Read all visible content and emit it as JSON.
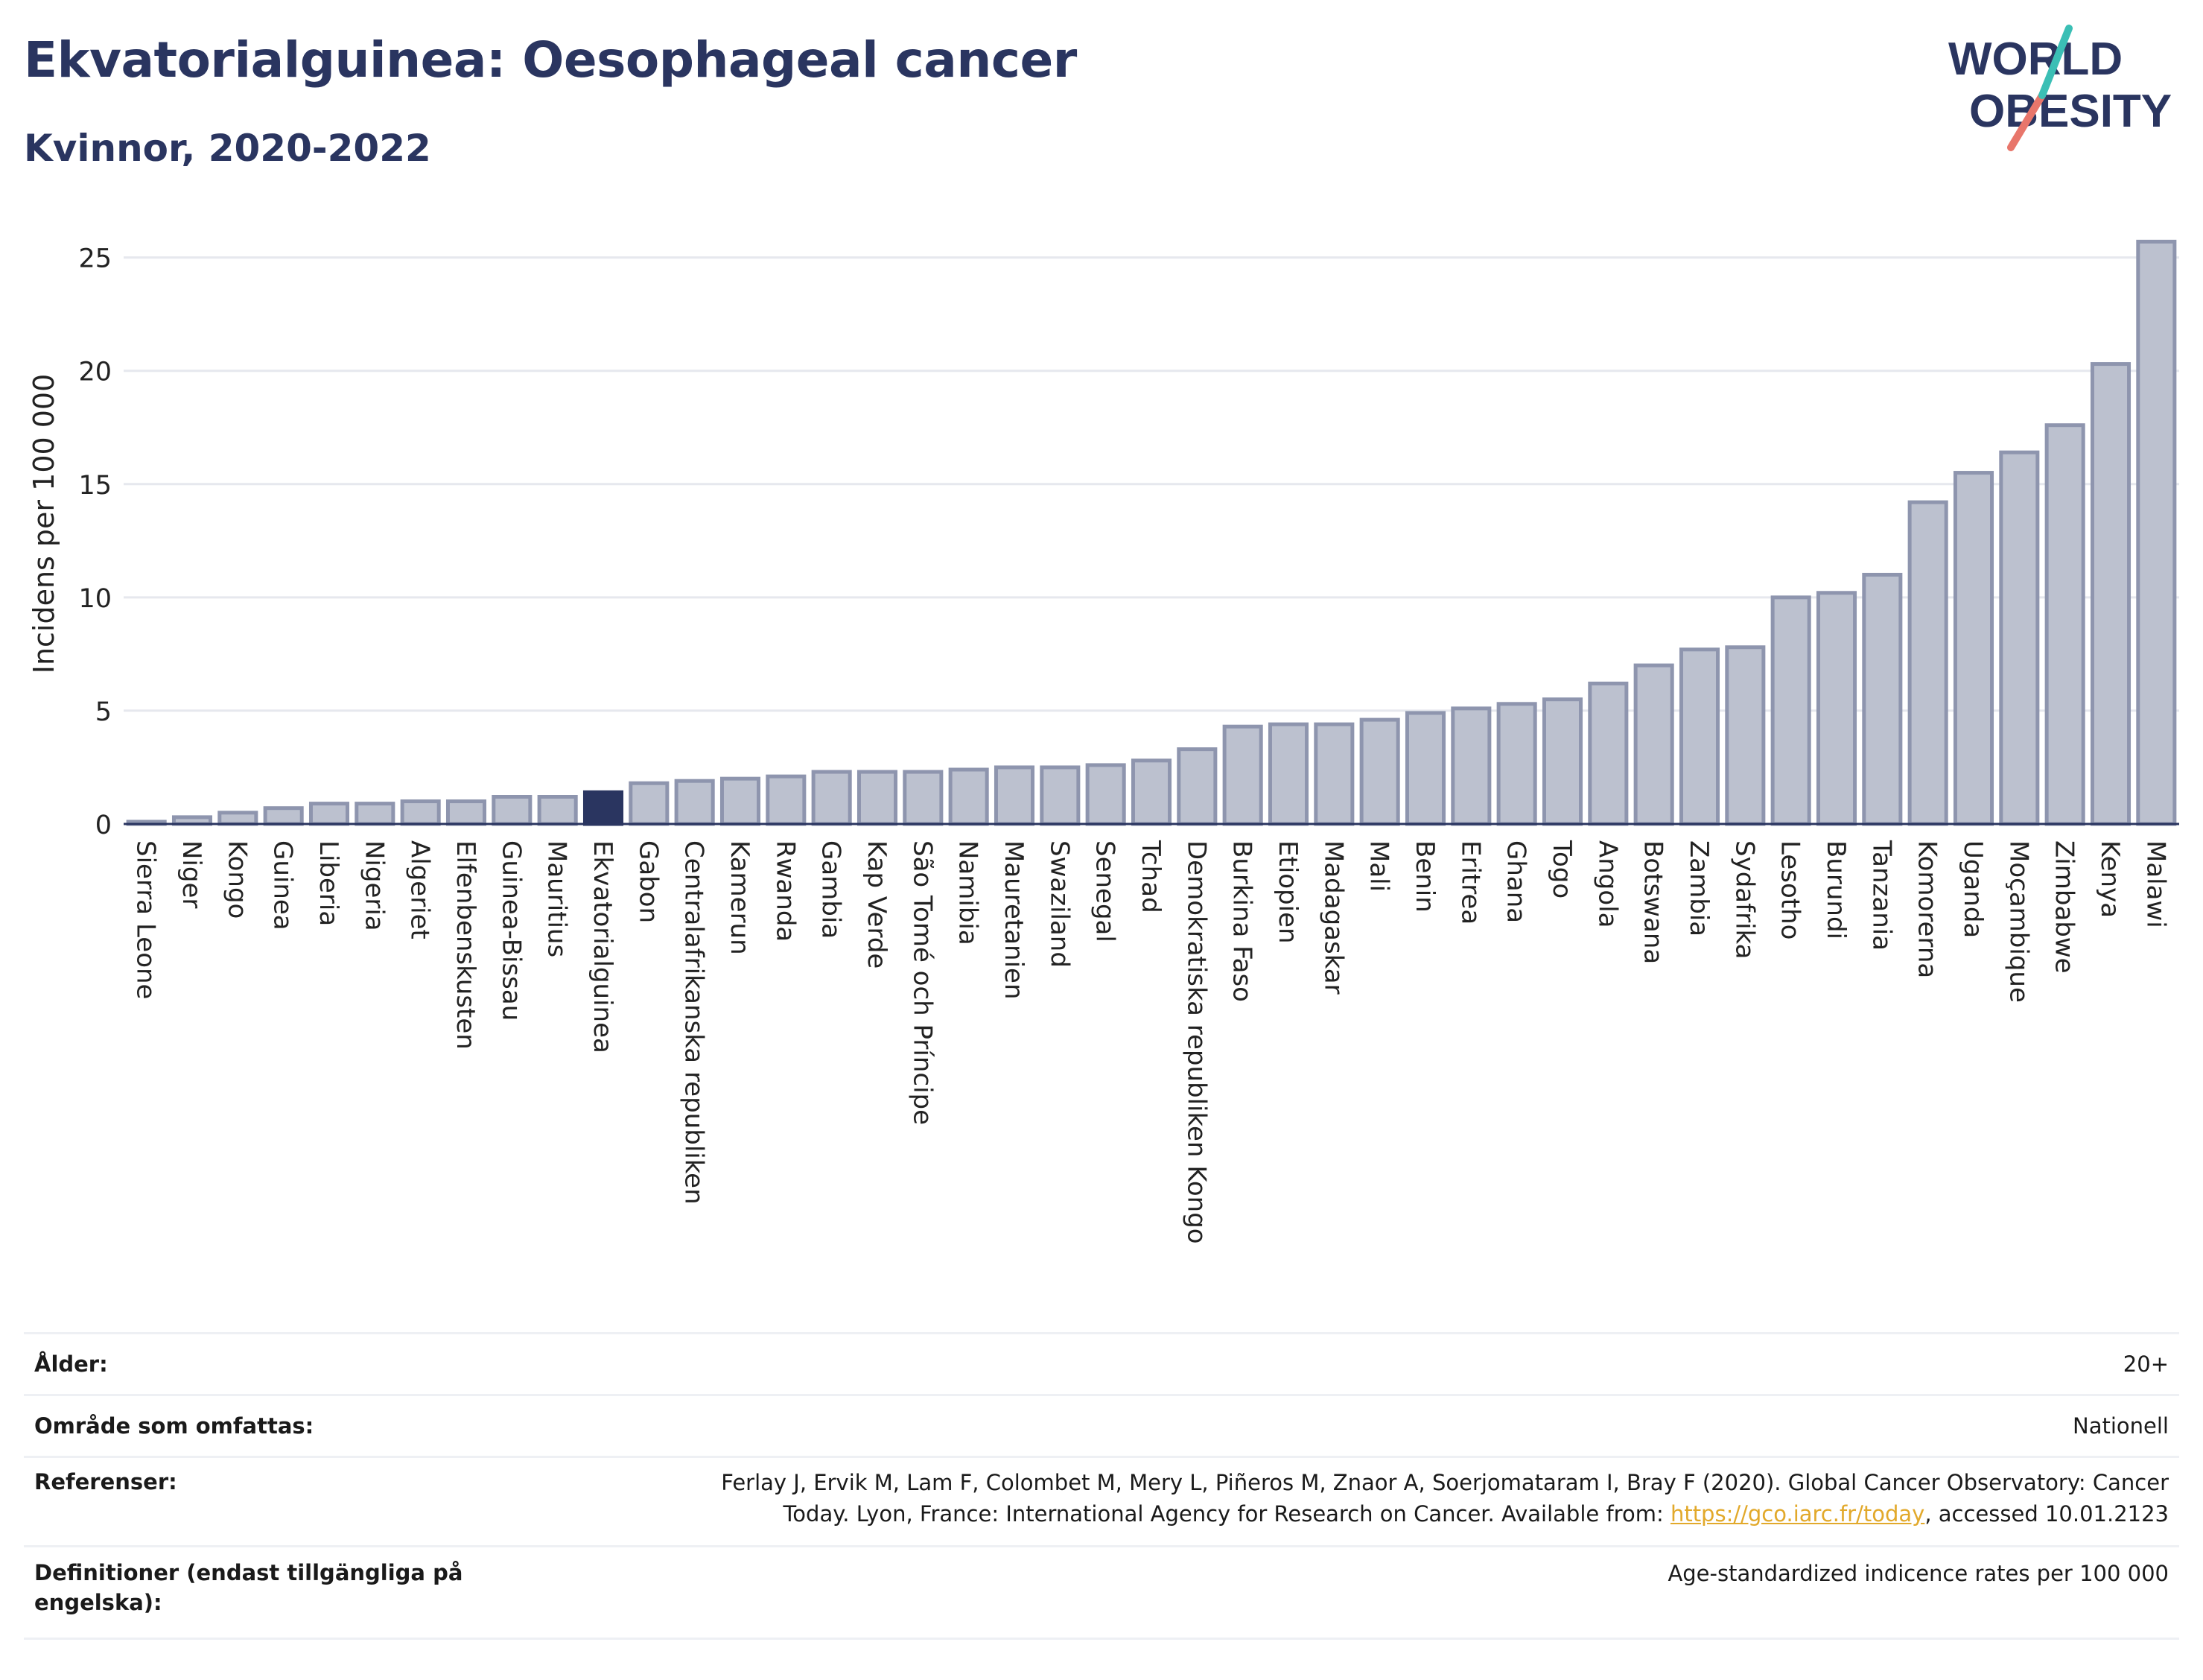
{
  "header": {
    "title": "Ekvatorialguinea: Oesophageal cancer",
    "subtitle": "Kvinnor, 2020-2022"
  },
  "logo": {
    "line1": "WORLD",
    "line2": "OBESITY"
  },
  "colors": {
    "title": "#2a3560",
    "bar_fill": "#bcc1cf",
    "bar_stroke": "#8e95ae",
    "highlight": "#2a3560",
    "grid": "#e6e8ee",
    "link": "#e2a92b",
    "logo_teal": "#3bbfb5",
    "logo_coral": "#e8766b"
  },
  "chart_data": {
    "type": "bar",
    "ylabel": "Incidens per 100 000",
    "ylim": [
      0,
      26.5
    ],
    "yticks": [
      0,
      5,
      10,
      15,
      20,
      25
    ],
    "grid": true,
    "highlight": "Ekvatorialguinea",
    "categories": [
      "Sierra Leone",
      "Niger",
      "Kongo",
      "Guinea",
      "Liberia",
      "Nigeria",
      "Algeriet",
      "Elfenbenskusten",
      "Guinea-Bissau",
      "Mauritius",
      "Ekvatorialguinea",
      "Gabon",
      "Centralafrikanska republiken",
      "Kamerun",
      "Rwanda",
      "Gambia",
      "Kap Verde",
      "São Tomé och Príncipe",
      "Namibia",
      "Mauretanien",
      "Swaziland",
      "Senegal",
      "Tchad",
      "Demokratiska republiken Kongo",
      "Burkina Faso",
      "Etiopien",
      "Madagaskar",
      "Mali",
      "Benin",
      "Eritrea",
      "Ghana",
      "Togo",
      "Angola",
      "Botswana",
      "Zambia",
      "Sydafrika",
      "Lesotho",
      "Burundi",
      "Tanzania",
      "Komorerna",
      "Uganda",
      "Moçambique",
      "Zimbabwe",
      "Kenya",
      "Malawi"
    ],
    "values": [
      0.1,
      0.3,
      0.5,
      0.7,
      0.9,
      0.9,
      1.0,
      1.0,
      1.2,
      1.2,
      1.4,
      1.8,
      1.9,
      2.0,
      2.1,
      2.3,
      2.3,
      2.3,
      2.4,
      2.5,
      2.5,
      2.6,
      2.8,
      3.3,
      4.3,
      4.4,
      4.4,
      4.6,
      4.9,
      5.1,
      5.3,
      5.5,
      6.2,
      7.0,
      7.7,
      7.8,
      10.0,
      10.2,
      11.0,
      14.2,
      15.5,
      16.4,
      17.6,
      20.3,
      25.7
    ]
  },
  "meta": [
    {
      "label": "Ålder:",
      "value": "20+"
    },
    {
      "label": "Område som omfattas:",
      "value": "Nationell"
    },
    {
      "label": "Referenser:",
      "value_line1": "Ferlay J, Ervik M, Lam F, Colombet M, Mery L, Piñeros M, Znaor A, Soerjomataram I, Bray F (2020). Global Cancer Observatory: Cancer",
      "value_line2_pre": "Today. Lyon, France: International Agency for Research on Cancer. Available from: ",
      "link": "https://gco.iarc.fr/today",
      "value_line2_post": ", accessed 10.01.2123"
    },
    {
      "label": "Definitioner (endast tillgängliga på engelska):",
      "value": "Age-standardized indicence rates per 100 000"
    }
  ]
}
